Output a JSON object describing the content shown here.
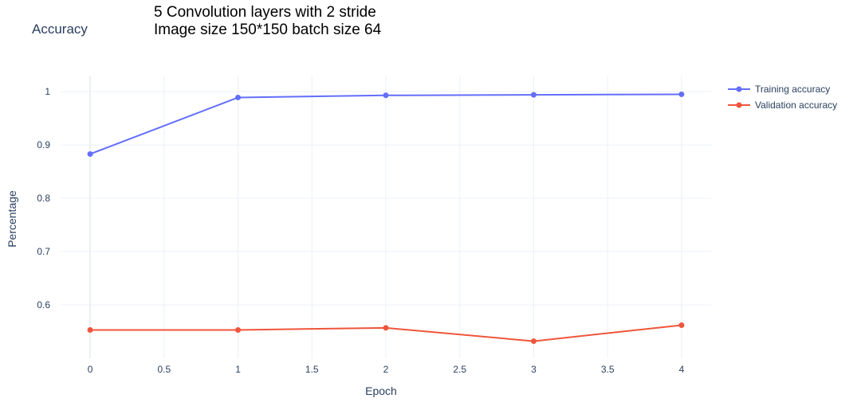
{
  "chart_data": {
    "type": "line",
    "title": "Accuracy",
    "annotation_lines": [
      "5 Convolution layers with 2 stride",
      "Image size 150*150 batch size 64"
    ],
    "xlabel": "Epoch",
    "ylabel": "Percentage",
    "x": [
      0,
      1,
      2,
      3,
      4
    ],
    "x_ticks": [
      0,
      0.5,
      1,
      1.5,
      2,
      2.5,
      3,
      3.5,
      4
    ],
    "x_tick_labels": [
      "0",
      "0.5",
      "1",
      "1.5",
      "2",
      "2.5",
      "3",
      "3.5",
      "4"
    ],
    "y_ticks": [
      0.6,
      0.7,
      0.8,
      0.9,
      1
    ],
    "y_tick_labels": [
      "0.6",
      "0.7",
      "0.8",
      "0.9",
      "1"
    ],
    "xlim": [
      -0.2,
      4.2
    ],
    "ylim": [
      0.5,
      1.03
    ],
    "grid": true,
    "legend_position": "top-right",
    "series": [
      {
        "name": "Training accuracy",
        "color": "#636efa",
        "values": [
          0.883,
          0.989,
          0.993,
          0.994,
          0.995
        ]
      },
      {
        "name": "Validation accuracy",
        "color": "#ef553b",
        "values": [
          0.553,
          0.553,
          0.557,
          0.532,
          0.562
        ]
      }
    ]
  }
}
